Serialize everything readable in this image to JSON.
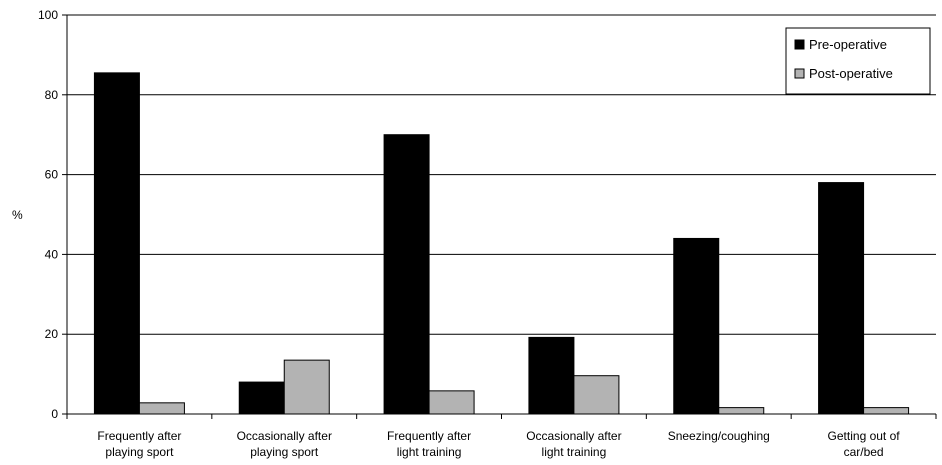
{
  "chart_data": {
    "type": "bar",
    "title": "",
    "xlabel": "",
    "ylabel": "%",
    "ylim": [
      0,
      100
    ],
    "yticks": [
      "0",
      "20",
      "40",
      "60",
      "80",
      "100"
    ],
    "grid": true,
    "legend_position": "top-right",
    "categories": [
      [
        "Frequently after",
        "playing sport"
      ],
      [
        "Occasionally after",
        "playing sport"
      ],
      [
        "Frequently after",
        "light training"
      ],
      [
        "Occasionally after",
        "light training"
      ],
      [
        "Sneezing/coughing"
      ],
      [
        "Getting out of",
        "car/bed"
      ]
    ],
    "series": [
      {
        "name": "Pre-operative",
        "color": "#000000",
        "values": [
          85.5,
          8,
          70,
          19.2,
          44,
          58
        ]
      },
      {
        "name": "Post-operative",
        "color": "#b3b3b3",
        "values": [
          2.8,
          13.5,
          5.8,
          9.6,
          1.6,
          1.6
        ]
      }
    ]
  }
}
